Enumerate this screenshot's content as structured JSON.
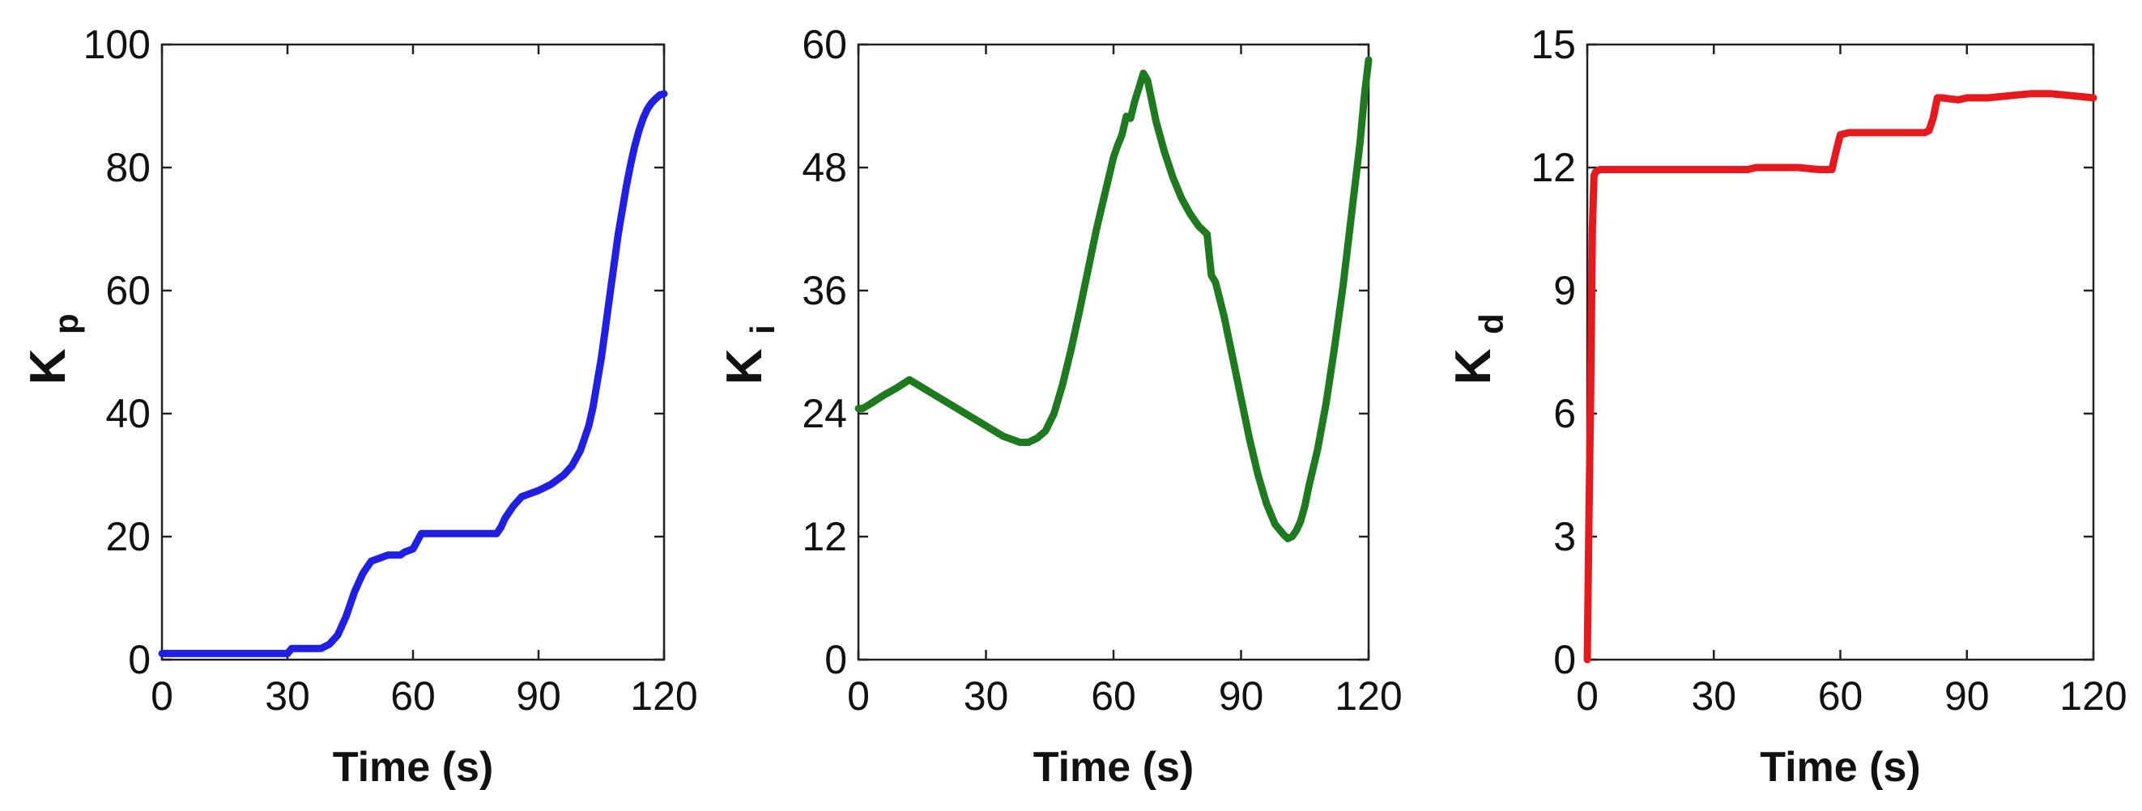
{
  "chart_data": [
    {
      "type": "line",
      "xlabel": "Time (s)",
      "ylabel": "K",
      "ylabel_sub": "p",
      "xlim": [
        0,
        120
      ],
      "ylim": [
        0,
        100
      ],
      "xticks": [
        0,
        30,
        60,
        90,
        120
      ],
      "yticks": [
        0,
        20,
        40,
        60,
        80,
        100
      ],
      "grid": false,
      "color": "#1f1fe6",
      "series": [
        {
          "x": [
            0,
            30,
            31,
            38,
            40,
            42,
            44,
            46,
            48,
            50,
            52,
            54,
            57,
            58,
            60,
            62,
            64,
            70,
            80,
            81,
            82,
            84,
            86,
            88,
            90,
            93,
            96,
            98,
            100,
            102,
            103,
            104,
            105,
            106,
            107,
            108,
            109,
            110,
            111,
            112,
            113,
            114,
            115,
            116,
            117,
            118,
            119,
            120
          ],
          "y": [
            1,
            1,
            1.8,
            1.8,
            2.5,
            4,
            7,
            11,
            14,
            16,
            16.5,
            17,
            17,
            17.5,
            18,
            20.5,
            20.5,
            20.5,
            20.5,
            21.5,
            23,
            25,
            26.5,
            27,
            27.5,
            28.5,
            30,
            31.5,
            34,
            38,
            41,
            45,
            49,
            54,
            59,
            64,
            69,
            73,
            77,
            80.5,
            83.5,
            86,
            88,
            89.5,
            90.5,
            91.2,
            91.8,
            92
          ]
        }
      ]
    },
    {
      "type": "line",
      "xlabel": "Time (s)",
      "ylabel": "K",
      "ylabel_sub": "i",
      "xlim": [
        0,
        120
      ],
      "ylim": [
        0,
        60
      ],
      "xticks": [
        0,
        30,
        60,
        90,
        120
      ],
      "yticks": [
        0,
        12,
        24,
        36,
        48,
        60
      ],
      "grid": false,
      "color": "#1e7a1e",
      "series": [
        {
          "x": [
            0,
            1,
            3,
            6,
            9,
            12,
            14,
            18,
            22,
            26,
            30,
            34,
            38,
            40,
            42,
            44,
            46,
            48,
            50,
            52,
            54,
            56,
            58,
            60,
            61,
            62,
            63,
            64,
            65,
            66,
            67,
            68,
            69,
            70,
            72,
            74,
            76,
            78,
            80,
            82,
            83,
            84,
            86,
            88,
            90,
            92,
            94,
            96,
            98,
            100,
            101,
            102,
            103,
            104,
            105,
            106,
            108,
            110,
            112,
            114,
            116,
            117,
            118,
            119,
            120
          ],
          "y": [
            24.5,
            24.5,
            25,
            25.8,
            26.5,
            27.3,
            26.8,
            25.8,
            24.8,
            23.8,
            22.8,
            21.8,
            21.2,
            21.2,
            21.6,
            22.3,
            24,
            26.8,
            30.2,
            34,
            38,
            42,
            45.5,
            49,
            50.2,
            51.2,
            53,
            52.8,
            54.5,
            55.8,
            57.2,
            56.5,
            54.5,
            52.5,
            49.5,
            47,
            45,
            43.5,
            42.3,
            41.5,
            37.5,
            36.8,
            33.5,
            29.5,
            25.5,
            21.5,
            18,
            15.2,
            13.2,
            12.2,
            11.8,
            12,
            12.6,
            13.5,
            15,
            17,
            20.5,
            25,
            30.5,
            36.5,
            43.5,
            47,
            50.5,
            55,
            58.5
          ]
        }
      ]
    },
    {
      "type": "line",
      "xlabel": "Time (s)",
      "ylabel": "K",
      "ylabel_sub": "d",
      "xlim": [
        0,
        120
      ],
      "ylim": [
        0,
        15
      ],
      "xticks": [
        0,
        30,
        60,
        90,
        120
      ],
      "yticks": [
        0,
        3,
        6,
        9,
        12,
        15
      ],
      "grid": false,
      "color": "#e8191c",
      "series": [
        {
          "x": [
            0,
            0.4,
            0.8,
            1.2,
            1.6,
            2,
            3,
            10,
            20,
            30,
            38,
            40,
            45,
            50,
            55,
            58,
            59,
            60,
            62,
            70,
            80,
            81,
            82,
            83,
            84,
            88,
            90,
            95,
            100,
            105,
            110,
            115,
            120
          ],
          "y": [
            0,
            3.5,
            6.5,
            10.5,
            11.8,
            11.9,
            11.95,
            11.95,
            11.95,
            11.95,
            11.95,
            12,
            12,
            12,
            11.95,
            11.95,
            12.4,
            12.8,
            12.85,
            12.85,
            12.85,
            12.9,
            13.2,
            13.7,
            13.7,
            13.65,
            13.7,
            13.7,
            13.75,
            13.8,
            13.8,
            13.75,
            13.7
          ]
        }
      ]
    }
  ]
}
